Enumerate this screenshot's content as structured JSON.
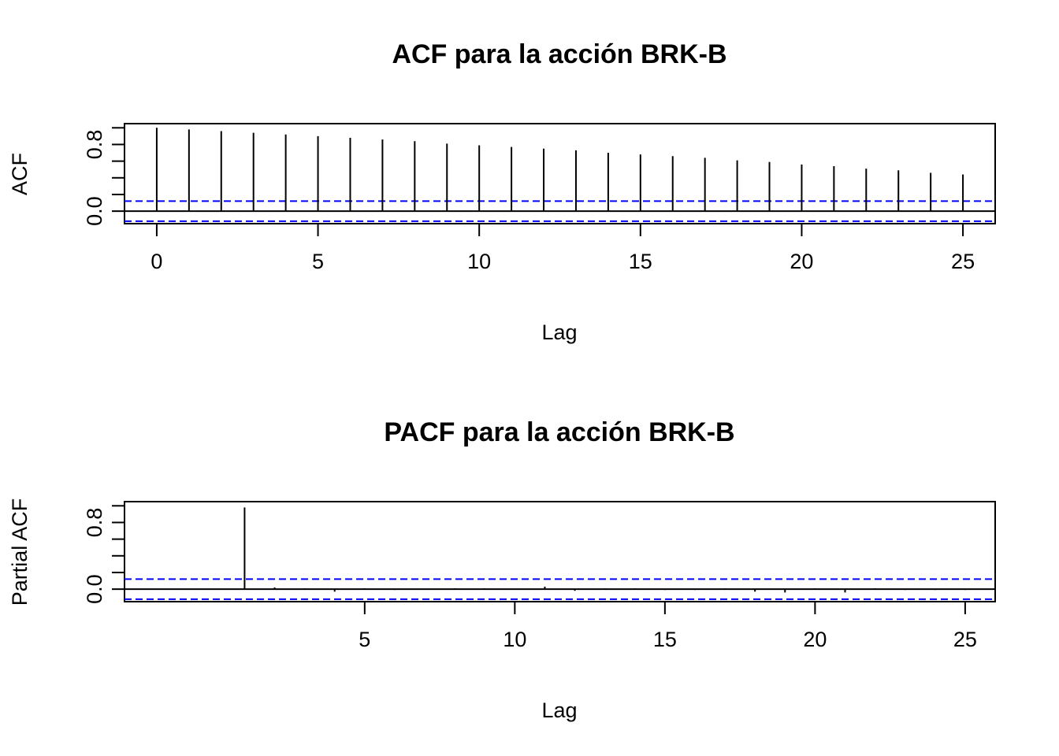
{
  "chart_data": [
    {
      "type": "bar",
      "subtype": "acf-spikes",
      "title": "ACF para la acción BRK-B",
      "xlabel": "Lag",
      "ylabel": "ACF",
      "x": [
        0,
        1,
        2,
        3,
        4,
        5,
        6,
        7,
        8,
        9,
        10,
        11,
        12,
        13,
        14,
        15,
        16,
        17,
        18,
        19,
        20,
        21,
        22,
        23,
        24,
        25
      ],
      "values": [
        1.0,
        0.98,
        0.96,
        0.94,
        0.92,
        0.9,
        0.88,
        0.86,
        0.84,
        0.81,
        0.79,
        0.77,
        0.75,
        0.73,
        0.7,
        0.68,
        0.66,
        0.64,
        0.61,
        0.59,
        0.56,
        0.54,
        0.51,
        0.49,
        0.46,
        0.44
      ],
      "ci": 0.12,
      "xlim": [
        -1,
        26
      ],
      "ylim": [
        -0.15,
        1.05
      ],
      "xticks": [
        0,
        5,
        10,
        15,
        20,
        25
      ],
      "yticks": [
        0.0,
        0.2,
        0.4,
        0.6,
        0.8,
        1.0
      ],
      "ytick_labels": [
        "0.0",
        "0.8"
      ],
      "ytick_label_values": [
        0.0,
        0.8
      ],
      "grid": false
    },
    {
      "type": "bar",
      "subtype": "pacf-spikes",
      "title": "PACF para la acción BRK-B",
      "xlabel": "Lag",
      "ylabel": "Partial ACF",
      "x": [
        1,
        2,
        3,
        4,
        5,
        6,
        7,
        8,
        9,
        10,
        11,
        12,
        13,
        14,
        15,
        16,
        17,
        18,
        19,
        20,
        21,
        22,
        23,
        24,
        25
      ],
      "values": [
        0.98,
        0.02,
        0.01,
        -0.03,
        0.01,
        -0.01,
        0.0,
        0.01,
        0.01,
        0.0,
        0.03,
        -0.02,
        0.01,
        0.01,
        -0.01,
        -0.01,
        0.01,
        -0.03,
        -0.04,
        0.01,
        -0.04,
        0.01,
        -0.01,
        -0.01,
        -0.01
      ],
      "ci": 0.12,
      "xlim": [
        -3,
        26
      ],
      "ylim": [
        -0.15,
        1.05
      ],
      "xticks": [
        5,
        10,
        15,
        20,
        25
      ],
      "yticks": [
        0.0,
        0.2,
        0.4,
        0.6,
        0.8,
        1.0
      ],
      "ytick_labels": [
        "0.0",
        "0.8"
      ],
      "ytick_label_values": [
        0.0,
        0.8
      ],
      "grid": false
    }
  ]
}
